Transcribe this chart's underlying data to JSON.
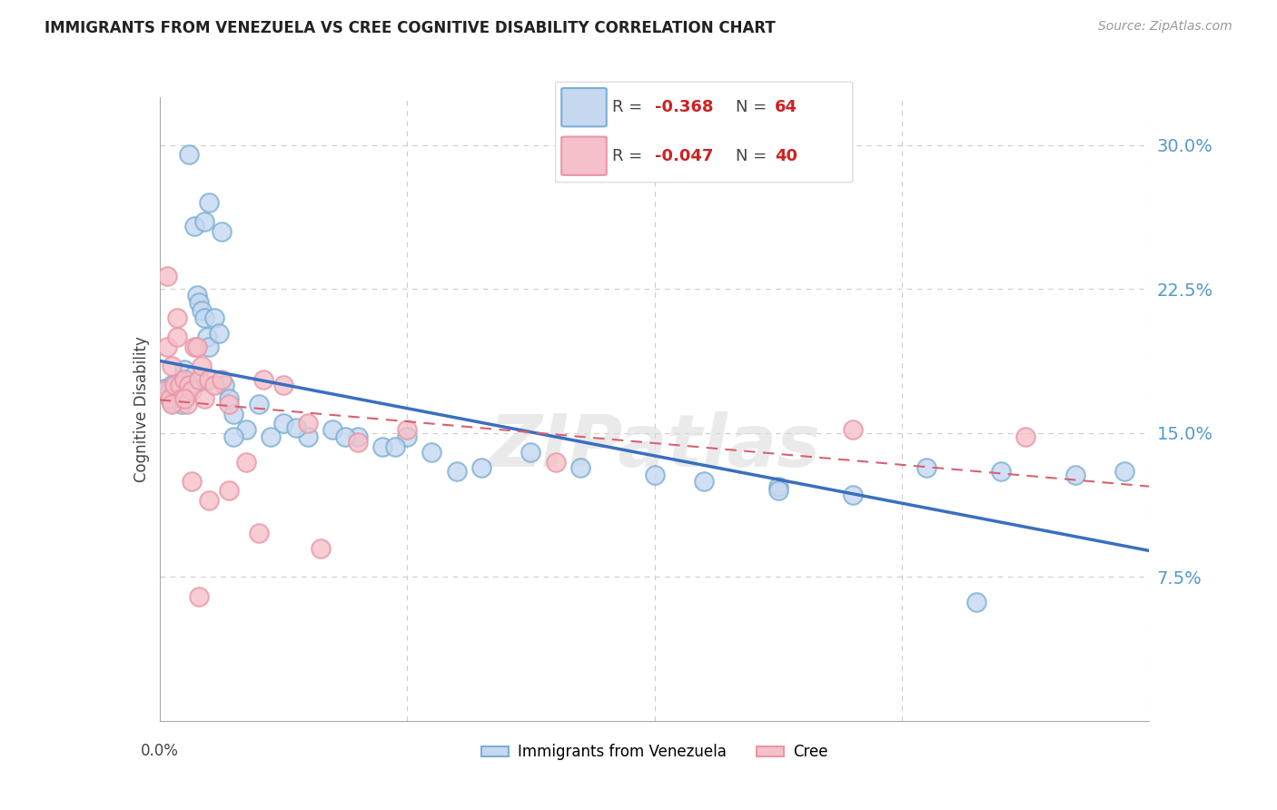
{
  "title": "IMMIGRANTS FROM VENEZUELA VS CREE COGNITIVE DISABILITY CORRELATION CHART",
  "source": "Source: ZipAtlas.com",
  "ylabel": "Cognitive Disability",
  "ytick_labels": [
    "7.5%",
    "15.0%",
    "22.5%",
    "30.0%"
  ],
  "ytick_values": [
    0.075,
    0.15,
    0.225,
    0.3
  ],
  "xlim": [
    0.0,
    0.4
  ],
  "ylim": [
    0.0,
    0.325
  ],
  "blue_face_color": "#C5D8F0",
  "blue_edge_color": "#7BAFD4",
  "pink_face_color": "#F5C0C8",
  "pink_edge_color": "#E896A8",
  "trendline_blue_color": "#3A6FBF",
  "trendline_pink_color": "#D96070",
  "watermark": "ZIPatlas",
  "legend_R_color": "#CC2222",
  "legend_N_color": "#333333",
  "blue_scatter_x": [
    0.002,
    0.003,
    0.004,
    0.004,
    0.005,
    0.005,
    0.006,
    0.006,
    0.007,
    0.007,
    0.008,
    0.008,
    0.009,
    0.009,
    0.01,
    0.01,
    0.011,
    0.012,
    0.013,
    0.014,
    0.015,
    0.016,
    0.017,
    0.018,
    0.019,
    0.02,
    0.022,
    0.024,
    0.026,
    0.028,
    0.03,
    0.035,
    0.04,
    0.045,
    0.05,
    0.06,
    0.07,
    0.08,
    0.09,
    0.1,
    0.11,
    0.13,
    0.15,
    0.17,
    0.2,
    0.22,
    0.25,
    0.28,
    0.31,
    0.34,
    0.37,
    0.39,
    0.014,
    0.02,
    0.025,
    0.012,
    0.018,
    0.03,
    0.055,
    0.075,
    0.095,
    0.12,
    0.25,
    0.33
  ],
  "blue_scatter_y": [
    0.173,
    0.17,
    0.168,
    0.172,
    0.166,
    0.175,
    0.171,
    0.174,
    0.169,
    0.173,
    0.175,
    0.17,
    0.178,
    0.165,
    0.183,
    0.171,
    0.177,
    0.173,
    0.175,
    0.18,
    0.222,
    0.218,
    0.214,
    0.21,
    0.2,
    0.195,
    0.21,
    0.202,
    0.175,
    0.168,
    0.16,
    0.152,
    0.165,
    0.148,
    0.155,
    0.148,
    0.152,
    0.148,
    0.143,
    0.148,
    0.14,
    0.132,
    0.14,
    0.132,
    0.128,
    0.125,
    0.122,
    0.118,
    0.132,
    0.13,
    0.128,
    0.13,
    0.258,
    0.27,
    0.255,
    0.295,
    0.26,
    0.148,
    0.153,
    0.148,
    0.143,
    0.13,
    0.12,
    0.062
  ],
  "pink_scatter_x": [
    0.002,
    0.003,
    0.004,
    0.005,
    0.006,
    0.007,
    0.008,
    0.009,
    0.01,
    0.011,
    0.012,
    0.013,
    0.014,
    0.015,
    0.016,
    0.017,
    0.018,
    0.02,
    0.022,
    0.025,
    0.028,
    0.035,
    0.042,
    0.05,
    0.06,
    0.08,
    0.1,
    0.16,
    0.28,
    0.35,
    0.003,
    0.005,
    0.007,
    0.01,
    0.013,
    0.016,
    0.02,
    0.028,
    0.04,
    0.065
  ],
  "pink_scatter_y": [
    0.172,
    0.195,
    0.168,
    0.185,
    0.175,
    0.2,
    0.175,
    0.168,
    0.178,
    0.165,
    0.175,
    0.172,
    0.195,
    0.195,
    0.178,
    0.185,
    0.168,
    0.178,
    0.175,
    0.178,
    0.165,
    0.135,
    0.178,
    0.175,
    0.155,
    0.145,
    0.152,
    0.135,
    0.152,
    0.148,
    0.232,
    0.165,
    0.21,
    0.168,
    0.125,
    0.065,
    0.115,
    0.12,
    0.098,
    0.09
  ]
}
